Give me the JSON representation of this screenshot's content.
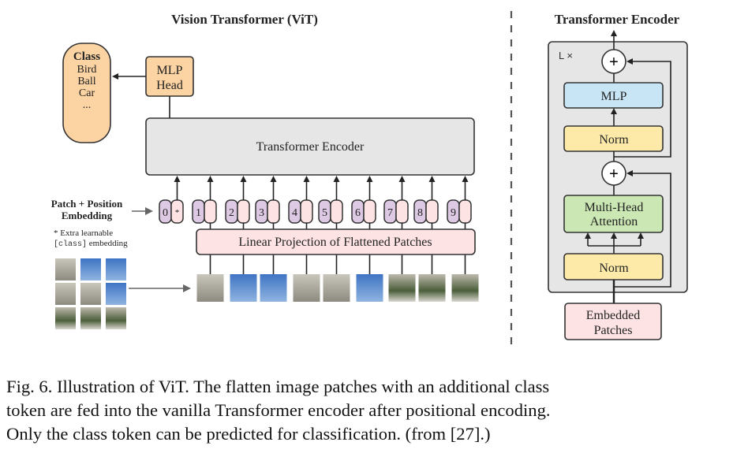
{
  "vit": {
    "title": "Vision Transformer (ViT)",
    "class_box": {
      "heading": "Class",
      "items": [
        "Bird",
        "Ball",
        "Car",
        "..."
      ]
    },
    "mlp_head": [
      "MLP",
      "Head"
    ],
    "encoder_label": "Transformer Encoder",
    "embedding_label": [
      "Patch + Position",
      "Embedding"
    ],
    "extra_note": [
      "* Extra learnable",
      "[class]",
      " embedding"
    ],
    "projection_label": "Linear Projection of Flattened Patches",
    "tokens": [
      "0",
      "1",
      "2",
      "3",
      "4",
      "5",
      "6",
      "7",
      "8",
      "9"
    ],
    "class_token_marker": "*"
  },
  "encoder": {
    "title": "Transformer Encoder",
    "repeat": "L ×",
    "plus": "+",
    "mlp": "MLP",
    "norm": "Norm",
    "attention": [
      "Multi-Head",
      "Attention"
    ],
    "input": [
      "Embedded",
      "Patches"
    ]
  },
  "colors": {
    "class_fill": "#fcd3a3",
    "mlp_head_fill": "#fcd3a3",
    "encoder_fill": "#e6e6e6",
    "position_fill": "#ddc9e3",
    "patch_fill": "#fde3e3",
    "mlp_fill": "#c7e5f5",
    "norm_fill": "#fdeaa8",
    "attention_fill": "#cbe7b4"
  },
  "caption": [
    "Fig. 6.  Illustration of ViT. The flatten image patches with an additional class",
    "token are fed into the vanilla Transformer encoder after positional encoding.",
    "Only the class token can be predicted for classification. (from [27].)"
  ]
}
